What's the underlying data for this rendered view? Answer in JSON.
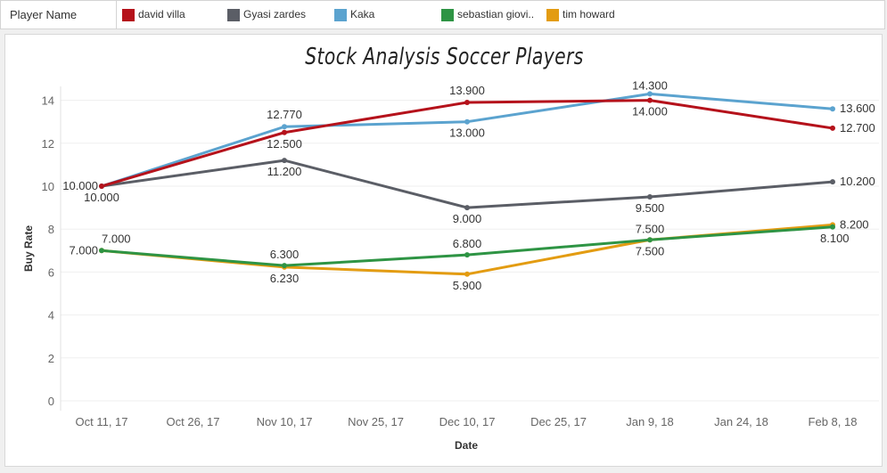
{
  "legend": {
    "title": "Player Name",
    "items": [
      {
        "label": "david villa",
        "color": "#b5121b"
      },
      {
        "label": "Gyasi zardes",
        "color": "#5b5e66"
      },
      {
        "label": "Kaka",
        "color": "#5ba3cf"
      },
      {
        "label": "sebastian giovi..",
        "color": "#2e9444"
      },
      {
        "label": "tim howard",
        "color": "#e39c12"
      }
    ]
  },
  "chart_data": {
    "type": "line",
    "title": "Stock Analysis Soccer Players",
    "xlabel": "Date",
    "ylabel": "Buy Rate",
    "ylim": [
      0,
      15
    ],
    "yticks": [
      "0",
      "2",
      "4",
      "6",
      "8",
      "10",
      "12",
      "14"
    ],
    "xticks": [
      "Oct 11, 17",
      "Oct 26, 17",
      "Nov 10, 17",
      "Nov 25, 17",
      "Dec 10, 17",
      "Dec 25, 17",
      "Jan 9, 18",
      "Jan 24, 18",
      "Feb 8, 18"
    ],
    "x": [
      "Oct 11, 17",
      "Nov 10, 17",
      "Dec 10, 17",
      "Jan 9, 18",
      "Feb 8, 18"
    ],
    "grid": true,
    "legend_position": "top",
    "series": [
      {
        "name": "david villa",
        "color": "#b5121b",
        "values": [
          10.0,
          12.5,
          13.9,
          14.0,
          12.7
        ],
        "labels": [
          "10.000",
          "12.500",
          "13.900",
          "14.000",
          "12.700"
        ]
      },
      {
        "name": "Gyasi zardes",
        "color": "#5b5e66",
        "values": [
          10.0,
          11.2,
          9.0,
          9.5,
          10.2
        ],
        "labels": [
          "10.000",
          "11.200",
          "9.000",
          "9.500",
          "10.200"
        ]
      },
      {
        "name": "Kaka",
        "color": "#5ba3cf",
        "values": [
          10.0,
          12.77,
          13.0,
          14.3,
          13.6
        ],
        "labels": [
          "10.000",
          "12.770",
          "13.000",
          "14.300",
          "13.600"
        ]
      },
      {
        "name": "sebastian giovi..",
        "color": "#2e9444",
        "values": [
          7.0,
          6.3,
          6.8,
          7.5,
          8.1
        ],
        "labels": [
          "7.000",
          "6.300",
          "6.800",
          "7.500",
          "8.100"
        ]
      },
      {
        "name": "tim howard",
        "color": "#e39c12",
        "values": [
          7.0,
          6.23,
          5.9,
          7.5,
          8.2
        ],
        "labels": [
          "7.000",
          "6.230",
          "5.900",
          "7.500",
          "8.200"
        ]
      }
    ]
  }
}
